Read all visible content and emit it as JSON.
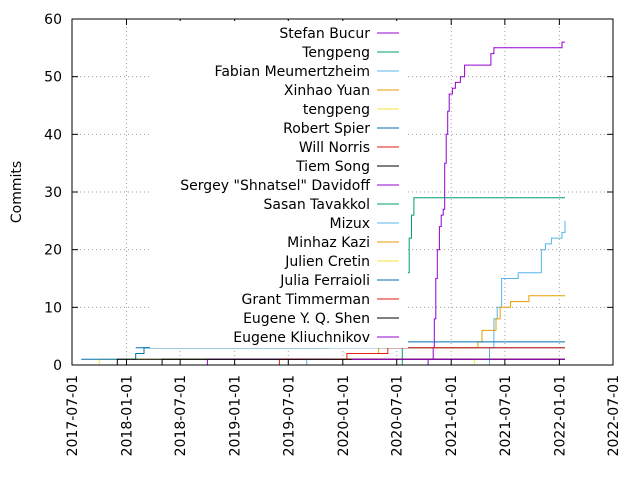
{
  "chart_data": {
    "type": "line",
    "ylabel": "Commits",
    "ylim": [
      0,
      60
    ],
    "xlim": [
      "2017-07-01",
      "2022-07-01"
    ],
    "y_ticks": [
      0,
      10,
      20,
      30,
      40,
      50,
      60
    ],
    "x_ticks": [
      "2017-07-01",
      "2018-01-01",
      "2018-07-01",
      "2019-01-01",
      "2019-07-01",
      "2020-01-01",
      "2020-07-01",
      "2021-01-01",
      "2021-07-01",
      "2022-01-01",
      "2022-07-01"
    ],
    "grid": true,
    "legend_position": "top-left",
    "series": [
      {
        "name": "Stefan Bucur",
        "color": "#9400d3",
        "points": [
          [
            "2020-09-20",
            0
          ],
          [
            "2020-10-15",
            1
          ],
          [
            "2020-11-01",
            3
          ],
          [
            "2020-11-05",
            8
          ],
          [
            "2020-11-10",
            15
          ],
          [
            "2020-11-15",
            20
          ],
          [
            "2020-11-22",
            24
          ],
          [
            "2020-11-28",
            26
          ],
          [
            "2020-12-05",
            27
          ],
          [
            "2020-12-10",
            35
          ],
          [
            "2020-12-15",
            40
          ],
          [
            "2020-12-20",
            44
          ],
          [
            "2020-12-25",
            47
          ],
          [
            "2021-01-05",
            48
          ],
          [
            "2021-01-15",
            49
          ],
          [
            "2021-02-01",
            50
          ],
          [
            "2021-02-15",
            52
          ],
          [
            "2021-05-01",
            52
          ],
          [
            "2021-05-15",
            54
          ],
          [
            "2021-05-25",
            55
          ],
          [
            "2022-01-01",
            55
          ],
          [
            "2022-01-10",
            56
          ],
          [
            "2022-01-20",
            56
          ]
        ]
      },
      {
        "name": "Tengpeng",
        "color": "#009e73",
        "points": [
          [
            "2020-07-05",
            0
          ],
          [
            "2020-07-20",
            3
          ],
          [
            "2020-07-28",
            12
          ],
          [
            "2020-08-05",
            16
          ],
          [
            "2020-08-12",
            22
          ],
          [
            "2020-08-20",
            26
          ],
          [
            "2020-08-28",
            29
          ],
          [
            "2022-01-20",
            29
          ]
        ]
      },
      {
        "name": "Fabian Meumertzheim",
        "color": "#56b4e9",
        "points": [
          [
            "2021-04-15",
            0
          ],
          [
            "2021-05-10",
            3
          ],
          [
            "2021-05-25",
            8
          ],
          [
            "2021-06-05",
            10
          ],
          [
            "2021-06-20",
            15
          ],
          [
            "2021-08-01",
            15
          ],
          [
            "2021-08-15",
            16
          ],
          [
            "2021-10-15",
            16
          ],
          [
            "2021-11-01",
            20
          ],
          [
            "2021-11-15",
            21
          ],
          [
            "2021-12-05",
            22
          ],
          [
            "2021-12-20",
            22
          ],
          [
            "2022-01-10",
            23
          ],
          [
            "2022-01-20",
            25
          ]
        ]
      },
      {
        "name": "Xinhao Yuan",
        "color": "#e69f00",
        "points": [
          [
            "2020-03-01",
            2
          ],
          [
            "2020-05-01",
            3
          ],
          [
            "2021-03-01",
            3
          ],
          [
            "2021-04-01",
            4
          ],
          [
            "2021-04-15",
            6
          ],
          [
            "2021-05-20",
            6
          ],
          [
            "2021-06-01",
            8
          ],
          [
            "2021-06-15",
            10
          ],
          [
            "2021-07-01",
            10
          ],
          [
            "2021-07-20",
            11
          ],
          [
            "2021-09-01",
            11
          ],
          [
            "2021-09-20",
            12
          ],
          [
            "2022-01-20",
            12
          ]
        ]
      },
      {
        "name": "tengpeng",
        "color": "#f0e442",
        "points": [
          [
            "2017-08-01",
            0
          ],
          [
            "2017-10-01",
            1
          ],
          [
            "2022-01-20",
            1
          ]
        ]
      },
      {
        "name": "Robert Spier",
        "color": "#0072b2",
        "points": [
          [
            "2017-08-01",
            1
          ],
          [
            "2017-12-15",
            1
          ],
          [
            "2018-02-01",
            2
          ],
          [
            "2018-03-01",
            3
          ],
          [
            "2022-01-20",
            3
          ]
        ]
      },
      {
        "name": "Will Norris",
        "color": "#e51e10",
        "points": [
          [
            "2020-01-01",
            1
          ],
          [
            "2020-01-15",
            2
          ],
          [
            "2020-05-01",
            2
          ],
          [
            "2020-06-01",
            3
          ],
          [
            "2022-01-20",
            3
          ]
        ]
      },
      {
        "name": "Tiem Song",
        "color": "#000000",
        "points": [
          [
            "2018-04-01",
            0
          ],
          [
            "2018-05-01",
            1
          ],
          [
            "2022-01-20",
            1
          ]
        ]
      },
      {
        "name": "Sergey \"Shnatsel\" Davidoff",
        "color": "#9400d3",
        "points": [
          [
            "2018-05-01",
            0
          ],
          [
            "2018-10-01",
            1
          ],
          [
            "2022-01-20",
            1
          ]
        ]
      },
      {
        "name": "Sasan Tavakkol",
        "color": "#009e73",
        "points": [
          [
            "2020-07-20",
            1
          ],
          [
            "2022-01-20",
            1
          ]
        ]
      },
      {
        "name": "Mizux",
        "color": "#56b4e9",
        "points": [
          [
            "2019-01-01",
            0
          ],
          [
            "2019-09-01",
            1
          ],
          [
            "2022-01-20",
            1
          ]
        ]
      },
      {
        "name": "Minhaz Kazi",
        "color": "#e69f00",
        "points": [
          [
            "2019-12-01",
            1
          ],
          [
            "2022-01-20",
            1
          ]
        ]
      },
      {
        "name": "Julien Cretin",
        "color": "#f0e442",
        "points": [
          [
            "2021-03-01",
            0
          ],
          [
            "2021-03-20",
            1
          ],
          [
            "2022-01-20",
            1
          ]
        ]
      },
      {
        "name": "Julia Ferraioli",
        "color": "#0072b2",
        "points": [
          [
            "2018-02-01",
            3
          ],
          [
            "2019-11-01",
            3
          ],
          [
            "2019-11-15",
            4
          ],
          [
            "2022-01-20",
            4
          ]
        ]
      },
      {
        "name": "Grant Timmerman",
        "color": "#e51e10",
        "points": [
          [
            "2018-09-01",
            0
          ],
          [
            "2019-06-01",
            1
          ],
          [
            "2022-01-20",
            1
          ]
        ]
      },
      {
        "name": "Eugene Y. Q. Shen",
        "color": "#000000",
        "points": [
          [
            "2017-08-01",
            0
          ],
          [
            "2017-12-01",
            1
          ],
          [
            "2022-01-20",
            1
          ]
        ]
      },
      {
        "name": "Eugene Kliuchnikov",
        "color": "#9400d3",
        "points": [
          [
            "2020-02-01",
            1
          ],
          [
            "2022-01-20",
            1
          ]
        ]
      }
    ]
  }
}
